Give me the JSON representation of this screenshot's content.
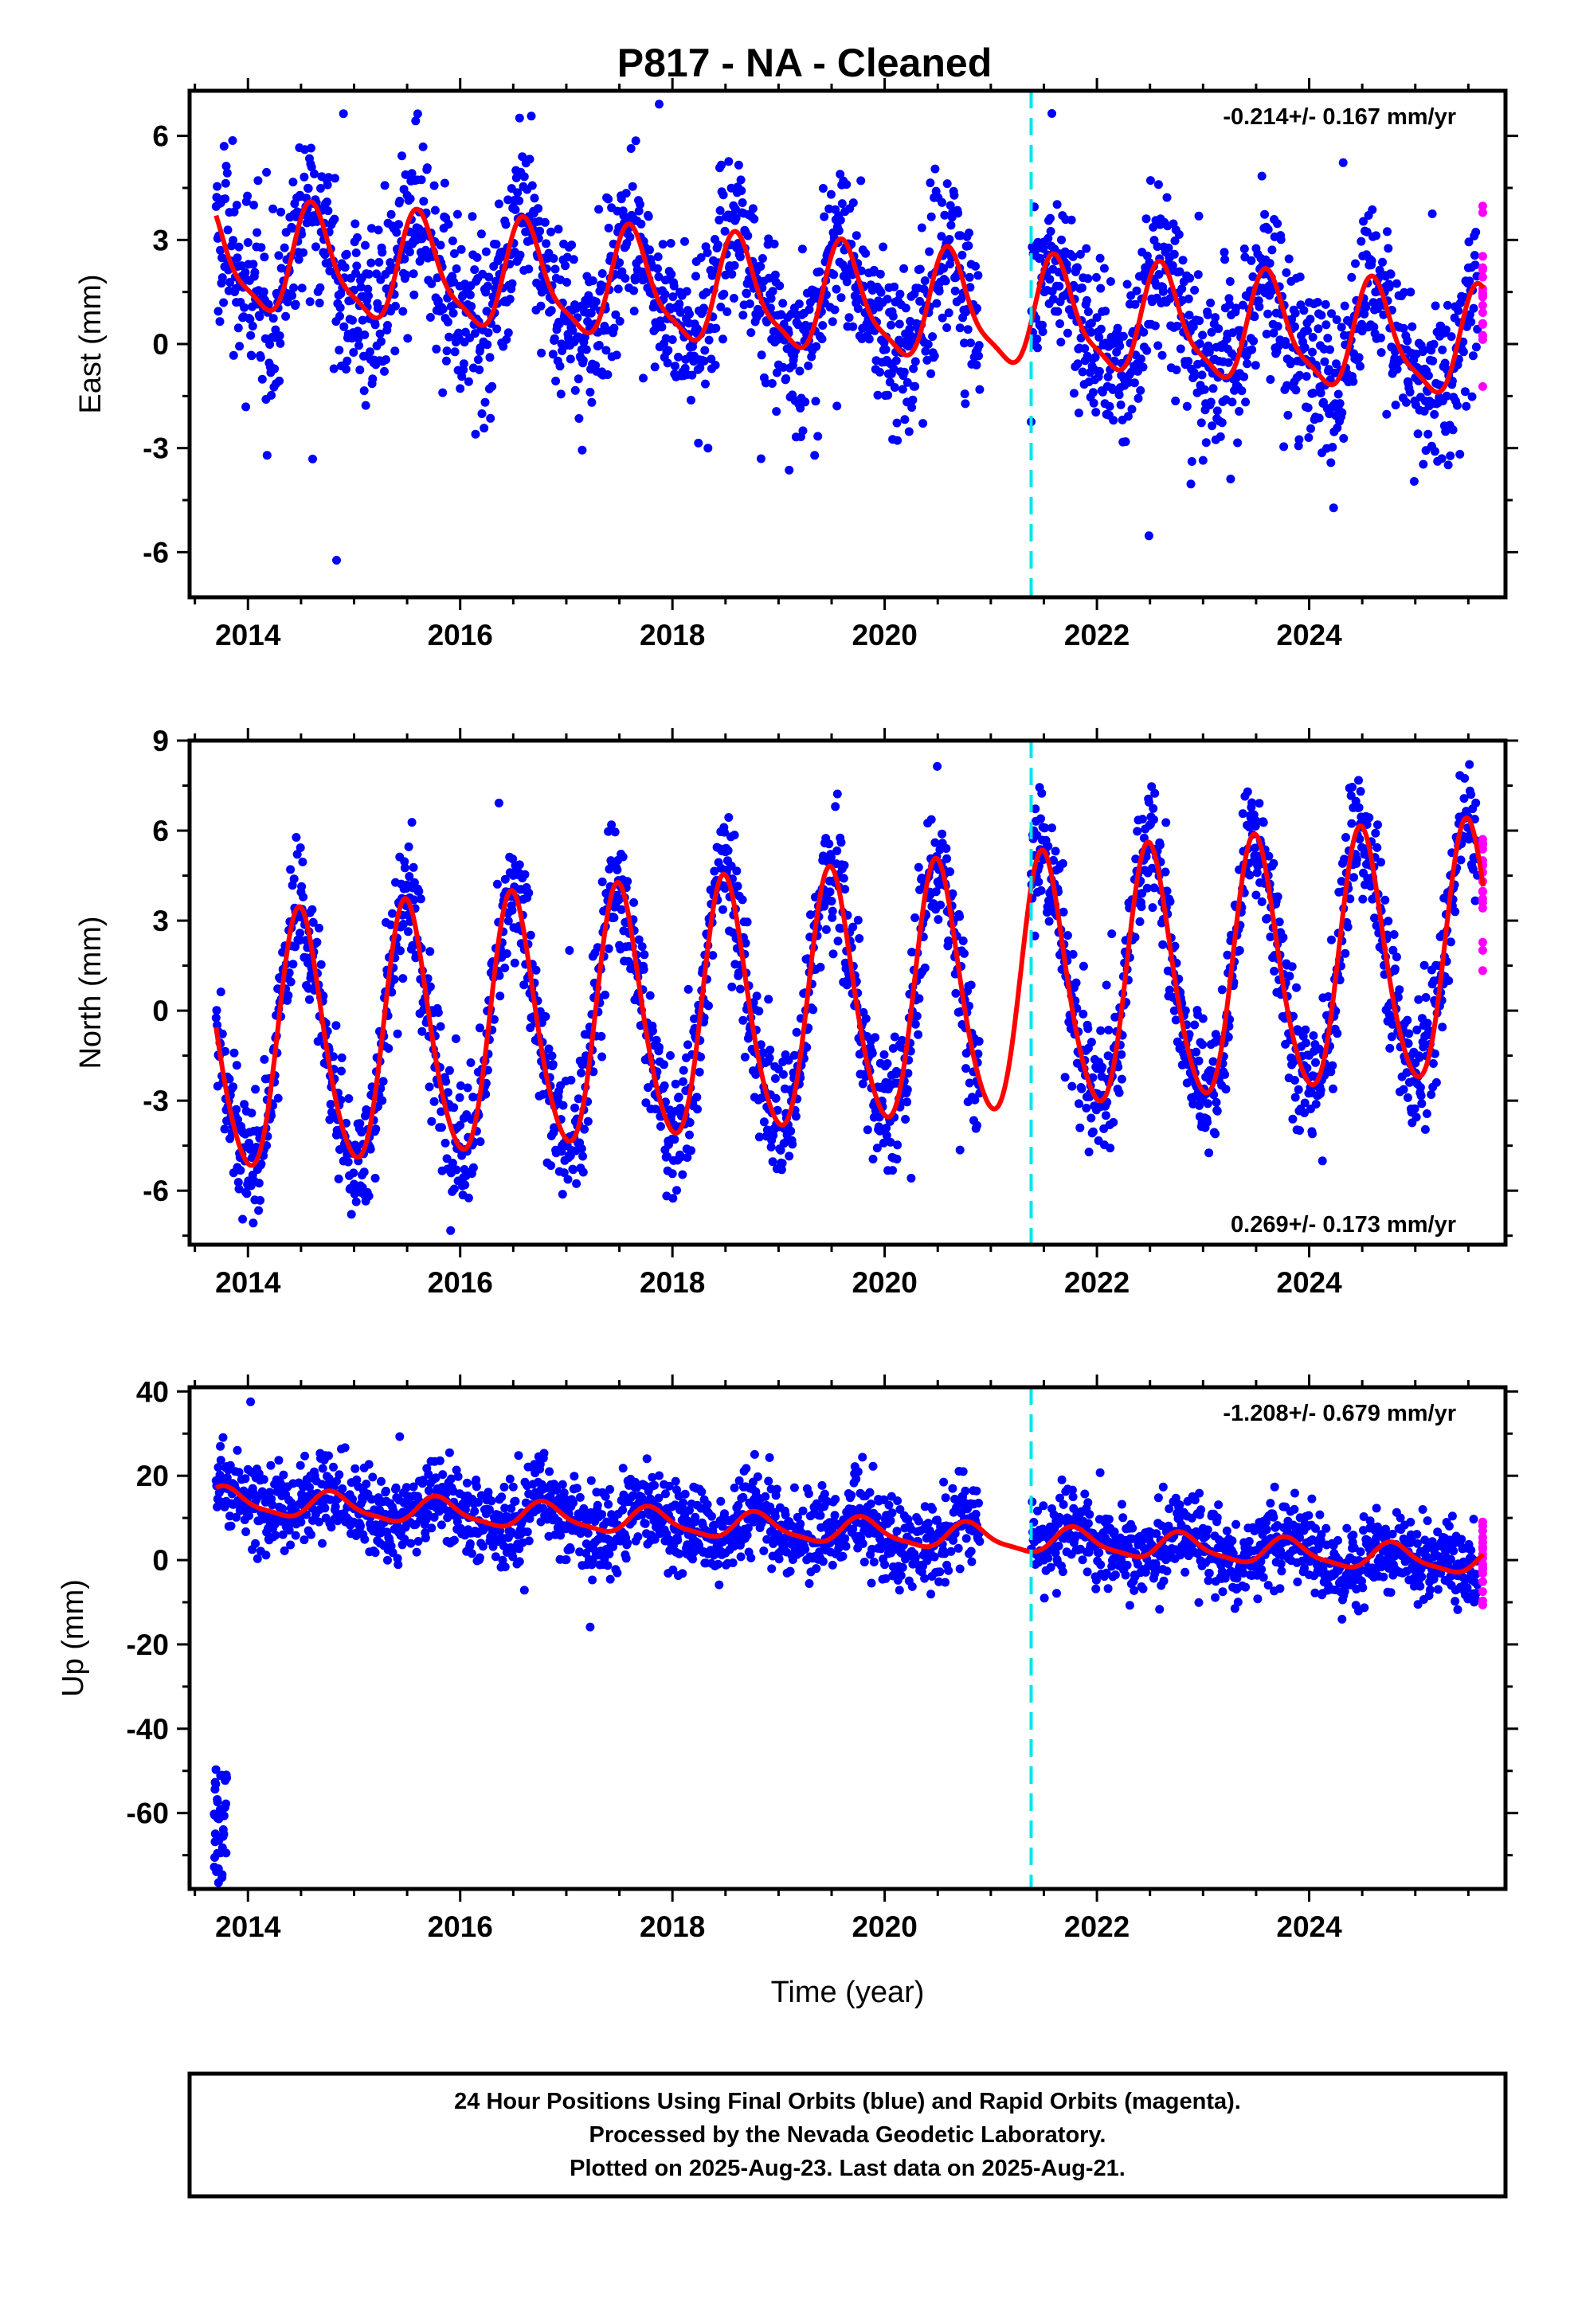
{
  "title": "P817  - NA - Cleaned",
  "colors": {
    "final_orbits": "#0000ff",
    "rapid_orbits": "#ff00ff",
    "model_fit": "#ff0000",
    "equipment_change": "#00e5ee"
  },
  "chart_data": [
    {
      "type": "scatter",
      "ylabel": "East (mm)",
      "xlabel": "",
      "xlim": [
        2013.45,
        2025.85
      ],
      "ylim": [
        -7.3,
        7.3
      ],
      "xticks": [
        "2014",
        "2016",
        "2018",
        "2020",
        "2022",
        "2024"
      ],
      "yticks": [
        "-6",
        "-3",
        "0",
        "3",
        "6"
      ],
      "rate": "-0.214+/- 0.167 mm/yr",
      "rate_position": "top-right",
      "equipment_change_x": 2021.38,
      "data_span": [
        2013.7,
        2025.64
      ],
      "gap": [
        2020.9,
        2021.38
      ],
      "model": {
        "offset": 1.2,
        "trend": -0.214,
        "annual_amp": 1.5,
        "annual_phase": 2014.62,
        "semiannual_amp": 0.4
      },
      "noise_sd": 1.2
    },
    {
      "type": "scatter",
      "ylabel": "North (mm)",
      "xlabel": "",
      "xlim": [
        2013.45,
        2025.85
      ],
      "ylim": [
        -7.8,
        9.0
      ],
      "xticks": [
        "2014",
        "2016",
        "2018",
        "2020",
        "2022",
        "2024"
      ],
      "yticks": [
        "-6",
        "-3",
        "0",
        "3",
        "6",
        "9"
      ],
      "rate": "0.269+/- 0.173 mm/yr",
      "rate_position": "bottom-right",
      "equipment_change_x": 2021.38,
      "data_span": [
        2013.7,
        2025.64
      ],
      "gap": [
        2020.9,
        2021.38
      ],
      "model": {
        "offset": 0.2,
        "trend": 0.269,
        "annual_amp": 4.2,
        "annual_phase": 2014.5,
        "semiannual_amp": 0.5
      },
      "noise_sd": 1.1
    },
    {
      "type": "scatter",
      "ylabel": "Up (mm)",
      "xlabel": "Time (year)",
      "xlim": [
        2013.45,
        2025.85
      ],
      "ylim": [
        -78,
        41
      ],
      "xticks": [
        "2014",
        "2016",
        "2018",
        "2020",
        "2022",
        "2024"
      ],
      "yticks": [
        "-60",
        "-40",
        "-20",
        "0",
        "20",
        "40"
      ],
      "rate": "-1.208+/- 0.679 mm/yr",
      "rate_position": "top-right",
      "equipment_change_x": 2021.38,
      "data_span": [
        2013.7,
        2025.64
      ],
      "gap": [
        2020.9,
        2021.38
      ],
      "outlier_cluster": {
        "x": [
          2013.68,
          2013.8
        ],
        "y": [
          -77,
          -49
        ]
      },
      "model": {
        "offset": 7.0,
        "trend": -1.208,
        "annual_amp": 3.0,
        "annual_phase": 2014.8,
        "semiannual_amp": 0.8
      },
      "noise_sd": 5.0
    }
  ],
  "footer": {
    "line1": "24 Hour Positions Using Final Orbits (blue) and Rapid Orbits (magenta).",
    "line2": "Processed by the Nevada Geodetic Laboratory.",
    "line3": "Plotted on 2025-Aug-23. Last data on 2025-Aug-21."
  }
}
